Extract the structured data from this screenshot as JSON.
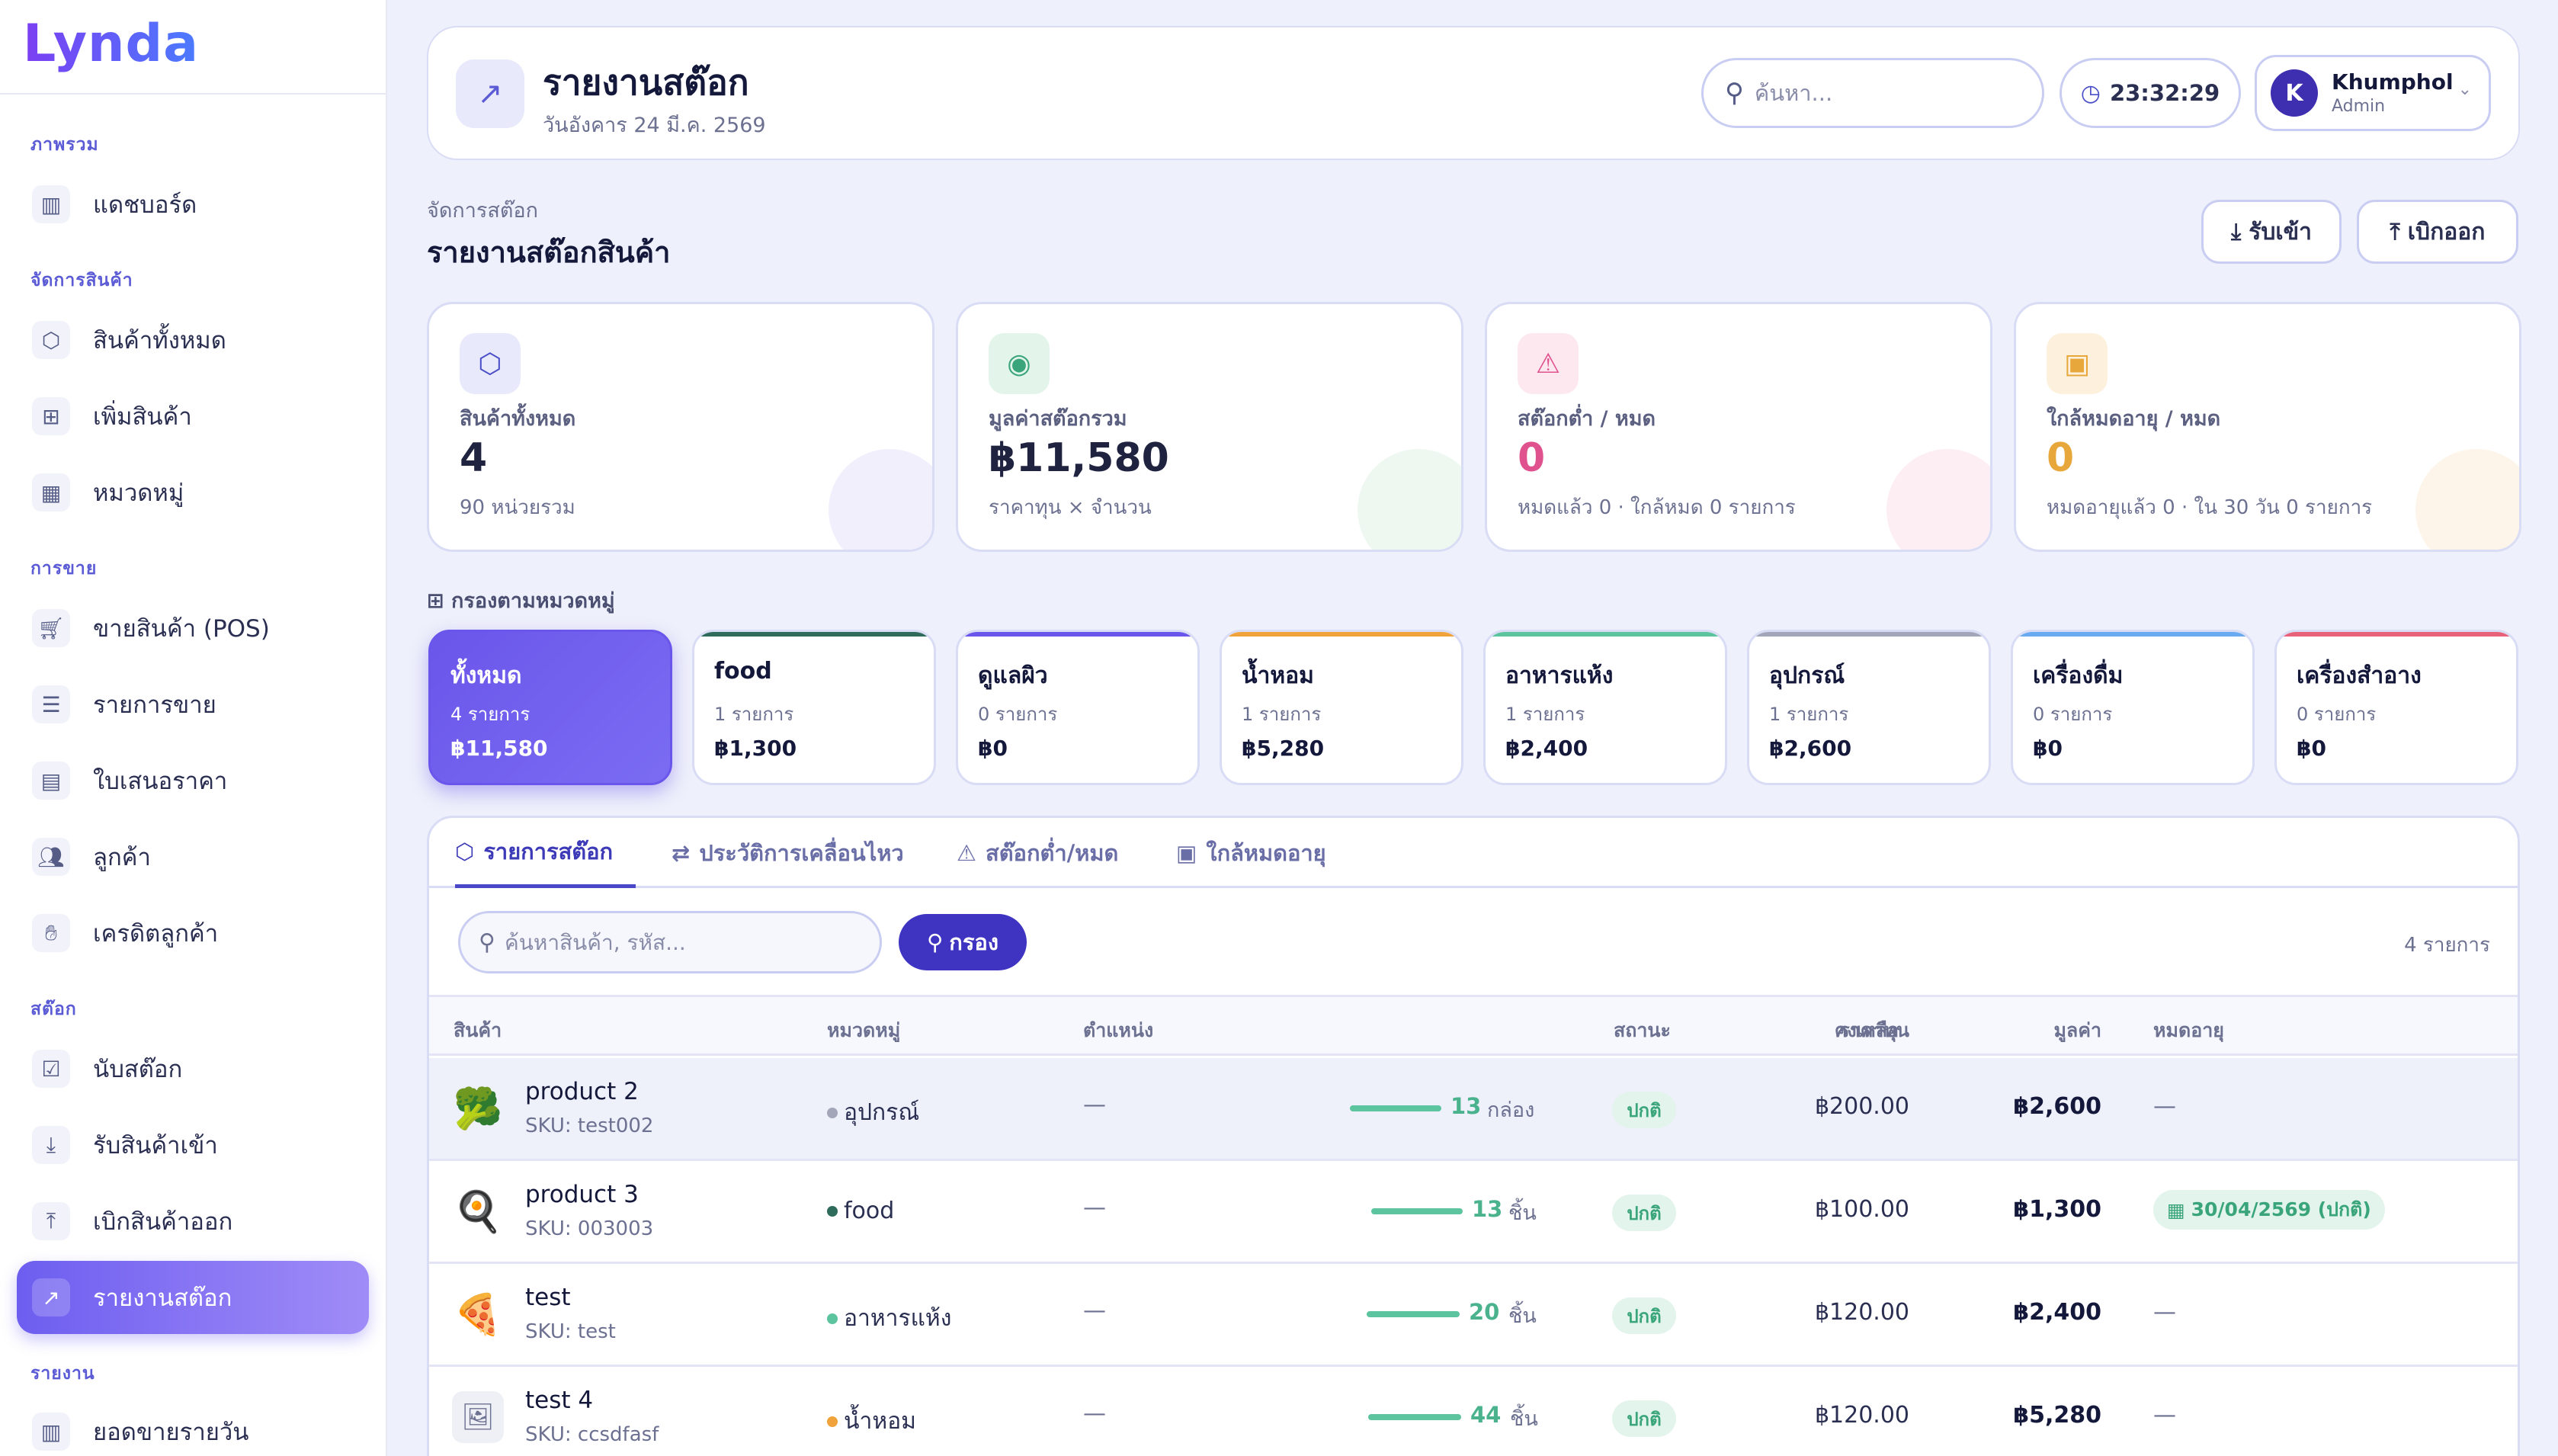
{
  "app": {
    "logo": "Lynda"
  },
  "sidebar": {
    "sections": [
      {
        "label": "ภาพรวม"
      },
      {
        "label": "จัดการสินค้า"
      },
      {
        "label": "การขาย"
      },
      {
        "label": "สต๊อก"
      },
      {
        "label": "รายงาน"
      }
    ],
    "items": [
      {
        "label": "แดชบอร์ด",
        "icon": "chart-icon"
      },
      {
        "label": "สินค้าทั้งหมด",
        "icon": "box-icon"
      },
      {
        "label": "เพิ่มสินค้า",
        "icon": "plus-square-icon"
      },
      {
        "label": "หมวดหมู่",
        "icon": "grid-icon"
      },
      {
        "label": "ขายสินค้า (POS)",
        "icon": "cart-icon"
      },
      {
        "label": "รายการขาย",
        "icon": "receipt-icon"
      },
      {
        "label": "ใบเสนอราคา",
        "icon": "document-icon"
      },
      {
        "label": "ลูกค้า",
        "icon": "users-icon"
      },
      {
        "label": "เครดิตลูกค้า",
        "icon": "credit-hand-icon"
      },
      {
        "label": "นับสต๊อก",
        "icon": "clipboard-check-icon"
      },
      {
        "label": "รับสินค้าเข้า",
        "icon": "download-icon"
      },
      {
        "label": "เบิกสินค้าออก",
        "icon": "upload-icon"
      },
      {
        "label": "รายงานสต๊อก",
        "icon": "trend-icon",
        "active": true
      },
      {
        "label": "ยอดขายรายวัน",
        "icon": "bar-chart-icon"
      }
    ]
  },
  "header": {
    "title": "รายงานสต๊อก",
    "date": "วันอังคาร 24 มี.ค. 2569",
    "search_placeholder": "ค้นหา...",
    "time": "23:32:29",
    "user": {
      "initial": "K",
      "name": "Khumphol",
      "role": "Admin"
    }
  },
  "page": {
    "breadcrumb": "จัดการสต๊อก",
    "title": "รายงานสต๊อกสินค้า",
    "btn_in": "รับเข้า",
    "btn_out": "เบิกออก"
  },
  "stats": [
    {
      "label": "สินค้าทั้งหมด",
      "value": "4",
      "note": "90 หน่วยรวม",
      "color": "#1f2340",
      "icon_bg": "#e8e9fb",
      "icon_color": "#4a4fc7",
      "blob": "#f1effc"
    },
    {
      "label": "มูลค่าสต๊อกรวม",
      "value": "฿11,580",
      "note": "ราคาทุน × จำนวน",
      "color": "#1f2340",
      "icon_bg": "#e3f5ea",
      "icon_color": "#3aa57a",
      "blob": "#eef8f1"
    },
    {
      "label": "สต๊อกต่ำ / หมด",
      "value": "0",
      "note": "หมดแล้ว 0 · ใกล้หมด 0 รายการ",
      "color": "#e0528e",
      "icon_bg": "#fde8ef",
      "icon_color": "#e0528e",
      "blob": "#fdeef3"
    },
    {
      "label": "ใกล้หมดอายุ / หมด",
      "value": "0",
      "note": "หมดอายุแล้ว 0 · ใน 30 วัน 0 รายการ",
      "color": "#e8a73a",
      "icon_bg": "#fdf1de",
      "icon_color": "#e8a73a",
      "blob": "#fdf5ea"
    }
  ],
  "filter": {
    "label": "กรองตามหมวดหมู่",
    "categories": [
      {
        "name": "ทั้งหมด",
        "count": "4 รายการ",
        "value": "฿11,580",
        "selected": true,
        "color": "#6a56ea"
      },
      {
        "name": "food",
        "count": "1 รายการ",
        "value": "฿1,300",
        "color": "#2f6b5a"
      },
      {
        "name": "ดูแลผิว",
        "count": "0 รายการ",
        "value": "฿0",
        "color": "#6a56ea"
      },
      {
        "name": "น้ำหอม",
        "count": "1 รายการ",
        "value": "฿5,280",
        "color": "#f0a33a"
      },
      {
        "name": "อาหารแห้ง",
        "count": "1 รายการ",
        "value": "฿2,400",
        "color": "#5cc49e"
      },
      {
        "name": "อุปกรณ์",
        "count": "1 รายการ",
        "value": "฿2,600",
        "color": "#a3a6b8"
      },
      {
        "name": "เครื่องดื่ม",
        "count": "0 รายการ",
        "value": "฿0",
        "color": "#6aaaf0"
      },
      {
        "name": "เครื่องสำอาง",
        "count": "0 รายการ",
        "value": "฿0",
        "color": "#e8617a"
      }
    ]
  },
  "panel": {
    "tabs": [
      {
        "label": "รายการสต๊อก",
        "icon": "box-icon",
        "active": true
      },
      {
        "label": "ประวัติการเคลื่อนไหว",
        "icon": "swap-icon"
      },
      {
        "label": "สต๊อกต่ำ/หมด",
        "icon": "warning-icon"
      },
      {
        "label": "ใกล้หมดอายุ",
        "icon": "calendar-x-icon"
      }
    ],
    "search_placeholder": "ค้นหาสินค้า, รหัส...",
    "filter_btn": "กรอง",
    "count": "4 รายการ",
    "columns": [
      "สินค้า",
      "หมวดหมู่",
      "ตำแหน่ง",
      "คงเหลือ",
      "สถานะ",
      "ราคาทุน",
      "มูลค่า",
      "หมดอายุ"
    ],
    "rows": [
      {
        "emoji": "🥦",
        "name": "product 2",
        "sku": "SKU: test002",
        "category": "อุปกรณ์",
        "cat_color": "#a3a6b8",
        "location": "—",
        "qty": "13",
        "unit": "กล่อง",
        "stock_level": 0.6,
        "status": "ปกติ",
        "cost": "฿200.00",
        "value": "฿2,600",
        "expiry": "—",
        "highlight": true
      },
      {
        "emoji": "🍳",
        "name": "product 3",
        "sku": "SKU: 003003",
        "category": "food",
        "cat_color": "#2f6b5a",
        "location": "—",
        "qty": "13",
        "unit": "ชิ้น",
        "stock_level": 0.6,
        "status": "ปกติ",
        "cost": "฿100.00",
        "value": "฿1,300",
        "expiry": "30/04/2569 (ปกติ)",
        "expiry_badge": true
      },
      {
        "emoji": "🍕",
        "name": "test",
        "sku": "SKU: test",
        "category": "อาหารแห้ง",
        "cat_color": "#5cc49e",
        "location": "—",
        "qty": "20",
        "unit": "ชิ้น",
        "stock_level": 0.6,
        "status": "ปกติ",
        "cost": "฿120.00",
        "value": "฿2,400",
        "expiry": "—"
      },
      {
        "emoji": "🖼",
        "name": "test 4",
        "sku": "SKU: ccsdfasf",
        "category": "น้ำหอม",
        "cat_color": "#f0a33a",
        "location": "—",
        "qty": "44",
        "unit": "ชิ้น",
        "stock_level": 0.6,
        "status": "ปกติ",
        "cost": "฿120.00",
        "value": "฿5,280",
        "expiry": "—"
      }
    ]
  }
}
